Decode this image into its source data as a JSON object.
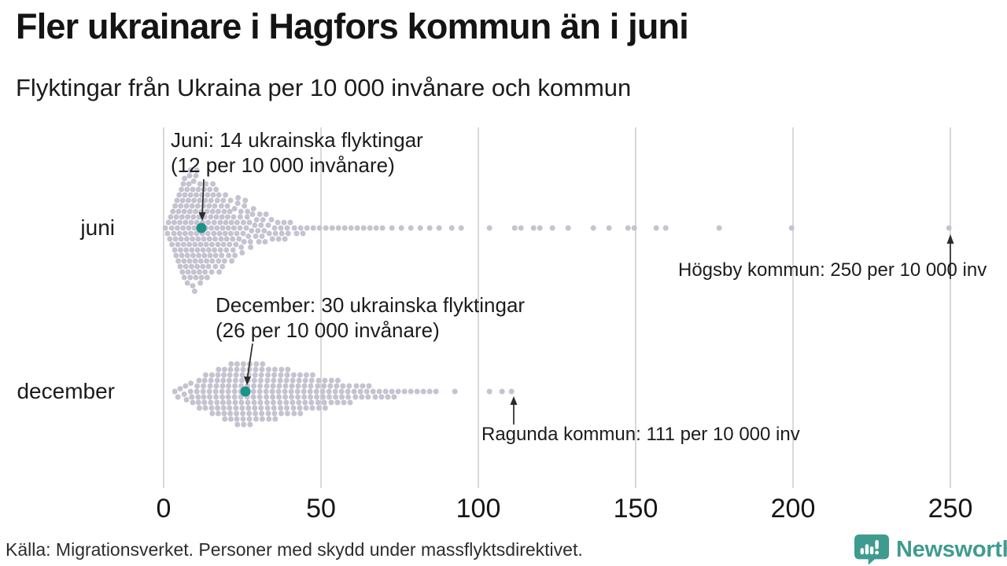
{
  "header": {
    "title": "Fler ukrainare i Hagfors kommun än i juni",
    "subtitle": "Flyktingar från Ukraina per 10 000 invånare och kommun"
  },
  "chart_data": {
    "type": "beeswarm",
    "x_unit": "flyktingar per 10 000 invånare",
    "xlim": [
      0,
      250
    ],
    "x_ticks": [
      0,
      50,
      100,
      150,
      200,
      250
    ],
    "grid": "vertical",
    "legend": "none",
    "rows": [
      {
        "label": "juni",
        "highlight_value": 12,
        "max_value": 250,
        "values_rle": [
          [
            1,
            2
          ],
          [
            2,
            3
          ],
          [
            3,
            5
          ],
          [
            4,
            7
          ],
          [
            5,
            9
          ],
          [
            6,
            10
          ],
          [
            7,
            11
          ],
          [
            8,
            12
          ],
          [
            9,
            12
          ],
          [
            10,
            12
          ],
          [
            11,
            11
          ],
          [
            12,
            11
          ],
          [
            13,
            10
          ],
          [
            14,
            10
          ],
          [
            15,
            9
          ],
          [
            16,
            9
          ],
          [
            17,
            8
          ],
          [
            18,
            8
          ],
          [
            19,
            7
          ],
          [
            20,
            7
          ],
          [
            21,
            6
          ],
          [
            22,
            6
          ],
          [
            23,
            5
          ],
          [
            24,
            5
          ],
          [
            25,
            5
          ],
          [
            26,
            4
          ],
          [
            27,
            4
          ],
          [
            28,
            4
          ],
          [
            29,
            3
          ],
          [
            30,
            3
          ],
          [
            31,
            3
          ],
          [
            32,
            3
          ],
          [
            33,
            2
          ],
          [
            34,
            2
          ],
          [
            35,
            2
          ],
          [
            36,
            2
          ],
          [
            37,
            2
          ],
          [
            38,
            2
          ],
          [
            39,
            2
          ],
          [
            40,
            2
          ],
          [
            42,
            2
          ],
          [
            44,
            2
          ],
          [
            46,
            1
          ],
          [
            48,
            1
          ],
          [
            50,
            1
          ],
          [
            52,
            1
          ],
          [
            54,
            1
          ],
          [
            56,
            1
          ],
          [
            58,
            1
          ],
          [
            60,
            1
          ],
          [
            62,
            1
          ],
          [
            64,
            1
          ],
          [
            66,
            1
          ],
          [
            68,
            1
          ],
          [
            70,
            1
          ],
          [
            73,
            1
          ],
          [
            76,
            1
          ],
          [
            79,
            1
          ],
          [
            82,
            1
          ],
          [
            85,
            1
          ],
          [
            88,
            1
          ],
          [
            92,
            1
          ],
          [
            95,
            1
          ],
          [
            104,
            1
          ],
          [
            112,
            1
          ],
          [
            114,
            1
          ],
          [
            118,
            1
          ],
          [
            120,
            1
          ],
          [
            124,
            1
          ],
          [
            129,
            1
          ],
          [
            137,
            1
          ],
          [
            142,
            1
          ],
          [
            148,
            1
          ],
          [
            150,
            1
          ],
          [
            157,
            1
          ],
          [
            160,
            1
          ],
          [
            177,
            1
          ],
          [
            200,
            1
          ],
          [
            250,
            1
          ]
        ]
      },
      {
        "label": "december",
        "highlight_value": 26,
        "max_value": 111,
        "values_rle": [
          [
            4,
            1
          ],
          [
            5,
            2
          ],
          [
            7,
            3
          ],
          [
            9,
            4
          ],
          [
            11,
            6
          ],
          [
            13,
            7
          ],
          [
            15,
            8
          ],
          [
            17,
            9
          ],
          [
            19,
            10
          ],
          [
            21,
            11
          ],
          [
            23,
            12
          ],
          [
            25,
            12
          ],
          [
            27,
            12
          ],
          [
            29,
            11
          ],
          [
            31,
            11
          ],
          [
            33,
            10
          ],
          [
            35,
            10
          ],
          [
            37,
            9
          ],
          [
            39,
            9
          ],
          [
            41,
            8
          ],
          [
            43,
            8
          ],
          [
            45,
            7
          ],
          [
            47,
            7
          ],
          [
            49,
            6
          ],
          [
            51,
            6
          ],
          [
            53,
            5
          ],
          [
            55,
            5
          ],
          [
            57,
            4
          ],
          [
            59,
            4
          ],
          [
            61,
            3
          ],
          [
            63,
            3
          ],
          [
            65,
            3
          ],
          [
            67,
            2
          ],
          [
            69,
            2
          ],
          [
            71,
            2
          ],
          [
            73,
            2
          ],
          [
            75,
            1
          ],
          [
            77,
            1
          ],
          [
            79,
            1
          ],
          [
            81,
            1
          ],
          [
            83,
            1
          ],
          [
            85,
            1
          ],
          [
            87,
            1
          ],
          [
            93,
            1
          ],
          [
            104,
            1
          ],
          [
            108,
            1
          ],
          [
            111,
            1
          ]
        ]
      }
    ],
    "annotations": {
      "juni_highlight": {
        "line1": "Juni: 14 ukrainska flyktingar",
        "line2": "(12 per 10 000 invånare)"
      },
      "december_highlight": {
        "line1": "December: 30 ukrainska flyktingar",
        "line2": "(26 per 10 000 invånare)"
      },
      "juni_max": "Högsby kommun: 250 per 10 000 inv",
      "december_max": "Ragunda kommun: 111 per 10 000 inv"
    }
  },
  "footer": {
    "source": "Källa: Migrationsverket. Personer med skydd under massflyktsdirektivet.",
    "brand": "Newsworthy"
  },
  "colors": {
    "dot": "#c5c3d0",
    "highlight": "#1d9287",
    "gridline": "#d9d9db",
    "brand_teal": "#3f9b90",
    "text": "#1a1a1a"
  }
}
